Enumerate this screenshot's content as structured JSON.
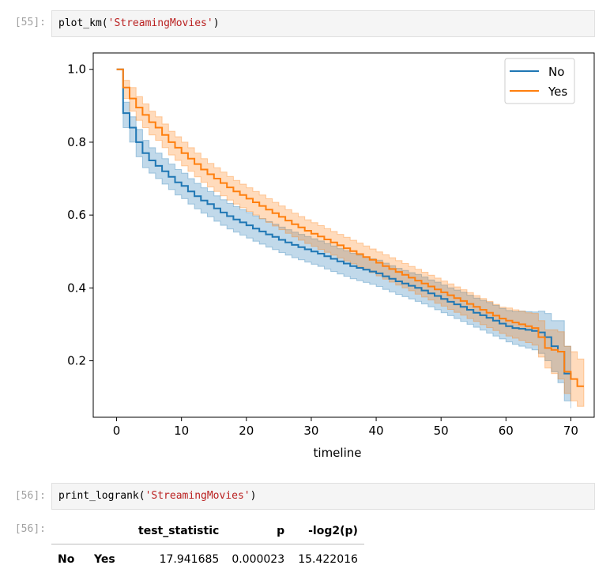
{
  "cells": {
    "c55": {
      "prompt": "[55]:",
      "code_fn": "plot_km(",
      "code_arg": "'StreamingMovies'",
      "code_end": ")"
    },
    "c56": {
      "prompt": "[56]:",
      "code_fn": "print_logrank(",
      "code_arg": "'StreamingMovies'",
      "code_end": ")",
      "out_prompt": "[56]:"
    }
  },
  "logrank_table": {
    "headers": [
      "test_statistic",
      "p",
      "-log2(p)"
    ],
    "row": {
      "index_1": "No",
      "index_2": "Yes",
      "test_statistic": "17.941685",
      "p": "0.000023",
      "neg_log2_p": "15.422016"
    }
  },
  "chart_data": {
    "type": "line",
    "title": "",
    "xlabel": "timeline",
    "ylabel": "",
    "xlim": [
      -3.6,
      73.6
    ],
    "ylim": [
      0.045,
      1.045
    ],
    "xticks": [
      0,
      10,
      20,
      30,
      40,
      50,
      60,
      70
    ],
    "yticks": [
      0.2,
      0.4,
      0.6,
      0.8,
      1.0
    ],
    "ytick_labels": [
      "0.2",
      "0.4",
      "0.6",
      "0.8",
      "1.0"
    ],
    "legend_position": "top-right",
    "grid": false,
    "series": [
      {
        "name": "No",
        "color": "#1f77b4",
        "x": [
          0,
          1,
          2,
          3,
          4,
          5,
          6,
          7,
          8,
          9,
          10,
          11,
          12,
          13,
          14,
          15,
          16,
          17,
          18,
          19,
          20,
          21,
          22,
          23,
          24,
          25,
          26,
          27,
          28,
          29,
          30,
          31,
          32,
          33,
          34,
          35,
          36,
          37,
          38,
          39,
          40,
          41,
          42,
          43,
          44,
          45,
          46,
          47,
          48,
          49,
          50,
          51,
          52,
          53,
          54,
          55,
          56,
          57,
          58,
          59,
          60,
          61,
          62,
          63,
          64,
          65,
          66,
          67,
          68,
          69,
          70
        ],
        "y": [
          1.0,
          0.88,
          0.84,
          0.8,
          0.77,
          0.75,
          0.735,
          0.72,
          0.705,
          0.69,
          0.68,
          0.665,
          0.652,
          0.64,
          0.63,
          0.618,
          0.607,
          0.597,
          0.588,
          0.58,
          0.572,
          0.563,
          0.555,
          0.547,
          0.54,
          0.532,
          0.525,
          0.518,
          0.512,
          0.506,
          0.5,
          0.494,
          0.487,
          0.48,
          0.473,
          0.467,
          0.46,
          0.455,
          0.45,
          0.445,
          0.44,
          0.432,
          0.425,
          0.418,
          0.412,
          0.406,
          0.4,
          0.393,
          0.385,
          0.378,
          0.37,
          0.362,
          0.355,
          0.348,
          0.34,
          0.332,
          0.325,
          0.318,
          0.31,
          0.302,
          0.295,
          0.29,
          0.288,
          0.285,
          0.282,
          0.278,
          0.265,
          0.24,
          0.225,
          0.165,
          0.15
        ],
        "lower": [
          1.0,
          0.84,
          0.8,
          0.76,
          0.73,
          0.715,
          0.7,
          0.685,
          0.67,
          0.655,
          0.645,
          0.63,
          0.617,
          0.605,
          0.595,
          0.583,
          0.572,
          0.562,
          0.553,
          0.545,
          0.537,
          0.528,
          0.52,
          0.512,
          0.505,
          0.497,
          0.49,
          0.483,
          0.477,
          0.471,
          0.465,
          0.459,
          0.452,
          0.445,
          0.438,
          0.432,
          0.425,
          0.42,
          0.415,
          0.41,
          0.404,
          0.396,
          0.389,
          0.382,
          0.376,
          0.37,
          0.363,
          0.356,
          0.348,
          0.34,
          0.332,
          0.324,
          0.316,
          0.308,
          0.3,
          0.292,
          0.284,
          0.276,
          0.268,
          0.26,
          0.252,
          0.245,
          0.24,
          0.235,
          0.23,
          0.22,
          0.2,
          0.17,
          0.14,
          0.09,
          0.07
        ],
        "upper": [
          1.0,
          0.91,
          0.87,
          0.835,
          0.805,
          0.785,
          0.77,
          0.755,
          0.74,
          0.725,
          0.715,
          0.7,
          0.687,
          0.675,
          0.665,
          0.653,
          0.642,
          0.632,
          0.623,
          0.615,
          0.607,
          0.598,
          0.59,
          0.582,
          0.575,
          0.567,
          0.56,
          0.553,
          0.547,
          0.541,
          0.535,
          0.529,
          0.522,
          0.515,
          0.508,
          0.502,
          0.495,
          0.49,
          0.485,
          0.48,
          0.476,
          0.468,
          0.461,
          0.454,
          0.448,
          0.442,
          0.437,
          0.43,
          0.422,
          0.416,
          0.408,
          0.4,
          0.394,
          0.388,
          0.38,
          0.372,
          0.366,
          0.36,
          0.352,
          0.344,
          0.338,
          0.335,
          0.336,
          0.335,
          0.334,
          0.336,
          0.33,
          0.31,
          0.31,
          0.24,
          0.23
        ]
      },
      {
        "name": "Yes",
        "color": "#ff7f0e",
        "x": [
          0,
          1,
          2,
          3,
          4,
          5,
          6,
          7,
          8,
          9,
          10,
          11,
          12,
          13,
          14,
          15,
          16,
          17,
          18,
          19,
          20,
          21,
          22,
          23,
          24,
          25,
          26,
          27,
          28,
          29,
          30,
          31,
          32,
          33,
          34,
          35,
          36,
          37,
          38,
          39,
          40,
          41,
          42,
          43,
          44,
          45,
          46,
          47,
          48,
          49,
          50,
          51,
          52,
          53,
          54,
          55,
          56,
          57,
          58,
          59,
          60,
          61,
          62,
          63,
          64,
          65,
          66,
          67,
          68,
          69,
          70,
          71,
          72
        ],
        "y": [
          1.0,
          0.95,
          0.92,
          0.895,
          0.875,
          0.855,
          0.84,
          0.82,
          0.8,
          0.785,
          0.77,
          0.755,
          0.74,
          0.725,
          0.712,
          0.7,
          0.688,
          0.676,
          0.665,
          0.655,
          0.645,
          0.635,
          0.625,
          0.615,
          0.605,
          0.595,
          0.585,
          0.575,
          0.566,
          0.557,
          0.549,
          0.541,
          0.533,
          0.525,
          0.517,
          0.509,
          0.501,
          0.493,
          0.485,
          0.477,
          0.469,
          0.46,
          0.452,
          0.444,
          0.436,
          0.428,
          0.42,
          0.412,
          0.404,
          0.396,
          0.388,
          0.38,
          0.372,
          0.364,
          0.356,
          0.348,
          0.34,
          0.332,
          0.324,
          0.316,
          0.31,
          0.305,
          0.3,
          0.295,
          0.29,
          0.265,
          0.235,
          0.23,
          0.225,
          0.17,
          0.15,
          0.13,
          0.13
        ],
        "lower": [
          1.0,
          0.92,
          0.885,
          0.86,
          0.84,
          0.82,
          0.805,
          0.785,
          0.765,
          0.75,
          0.735,
          0.72,
          0.705,
          0.69,
          0.677,
          0.665,
          0.653,
          0.641,
          0.63,
          0.62,
          0.61,
          0.6,
          0.59,
          0.58,
          0.57,
          0.56,
          0.55,
          0.54,
          0.531,
          0.522,
          0.514,
          0.506,
          0.498,
          0.49,
          0.482,
          0.474,
          0.466,
          0.458,
          0.45,
          0.442,
          0.433,
          0.424,
          0.416,
          0.408,
          0.4,
          0.392,
          0.383,
          0.375,
          0.367,
          0.358,
          0.35,
          0.341,
          0.333,
          0.325,
          0.316,
          0.308,
          0.299,
          0.291,
          0.283,
          0.275,
          0.268,
          0.262,
          0.256,
          0.25,
          0.243,
          0.21,
          0.18,
          0.165,
          0.15,
          0.11,
          0.09,
          0.075,
          0.075
        ],
        "upper": [
          1.0,
          0.97,
          0.95,
          0.925,
          0.905,
          0.885,
          0.87,
          0.85,
          0.83,
          0.815,
          0.8,
          0.785,
          0.77,
          0.755,
          0.742,
          0.73,
          0.718,
          0.706,
          0.695,
          0.685,
          0.675,
          0.665,
          0.655,
          0.645,
          0.635,
          0.625,
          0.615,
          0.605,
          0.596,
          0.587,
          0.579,
          0.571,
          0.563,
          0.555,
          0.547,
          0.539,
          0.531,
          0.523,
          0.515,
          0.507,
          0.499,
          0.491,
          0.483,
          0.475,
          0.467,
          0.459,
          0.451,
          0.443,
          0.435,
          0.427,
          0.419,
          0.411,
          0.403,
          0.395,
          0.387,
          0.379,
          0.371,
          0.363,
          0.355,
          0.347,
          0.345,
          0.34,
          0.336,
          0.332,
          0.33,
          0.31,
          0.285,
          0.285,
          0.28,
          0.24,
          0.225,
          0.205,
          0.205
        ]
      }
    ]
  }
}
